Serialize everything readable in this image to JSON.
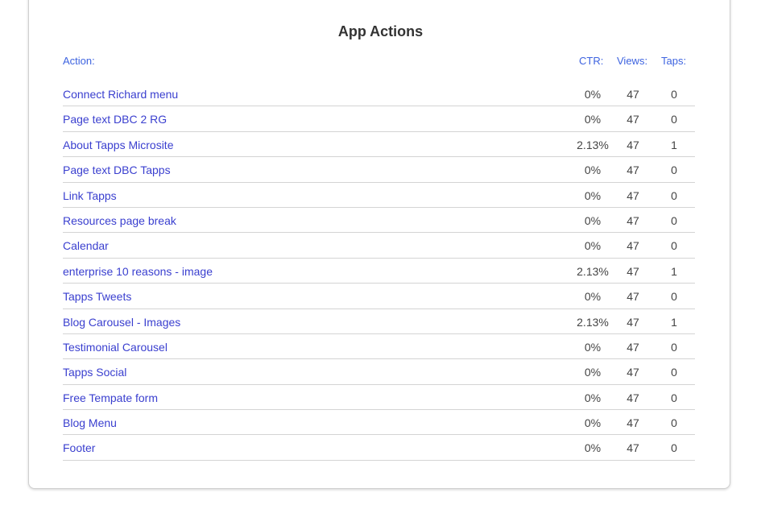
{
  "title": "App Actions",
  "headers": {
    "action": "Action:",
    "ctr": "CTR:",
    "views": "Views:",
    "taps": "Taps:"
  },
  "rows": [
    {
      "action": "Connect Richard menu",
      "ctr": "0%",
      "views": "47",
      "taps": "0"
    },
    {
      "action": "Page text DBC 2 RG",
      "ctr": "0%",
      "views": "47",
      "taps": "0"
    },
    {
      "action": "About Tapps Microsite",
      "ctr": "2.13%",
      "views": "47",
      "taps": "1"
    },
    {
      "action": "Page text DBC Tapps",
      "ctr": "0%",
      "views": "47",
      "taps": "0"
    },
    {
      "action": "Link Tapps",
      "ctr": "0%",
      "views": "47",
      "taps": "0"
    },
    {
      "action": "Resources page break",
      "ctr": "0%",
      "views": "47",
      "taps": "0"
    },
    {
      "action": "Calendar",
      "ctr": "0%",
      "views": "47",
      "taps": "0"
    },
    {
      "action": "enterprise 10 reasons - image",
      "ctr": "2.13%",
      "views": "47",
      "taps": "1"
    },
    {
      "action": "Tapps Tweets",
      "ctr": "0%",
      "views": "47",
      "taps": "0"
    },
    {
      "action": "Blog Carousel - Images",
      "ctr": "2.13%",
      "views": "47",
      "taps": "1"
    },
    {
      "action": "Testimonial Carousel",
      "ctr": "0%",
      "views": "47",
      "taps": "0"
    },
    {
      "action": "Tapps Social",
      "ctr": "0%",
      "views": "47",
      "taps": "0"
    },
    {
      "action": "Free Tempate form",
      "ctr": "0%",
      "views": "47",
      "taps": "0"
    },
    {
      "action": "Blog Menu",
      "ctr": "0%",
      "views": "47",
      "taps": "0"
    },
    {
      "action": "Footer",
      "ctr": "0%",
      "views": "47",
      "taps": "0"
    }
  ]
}
